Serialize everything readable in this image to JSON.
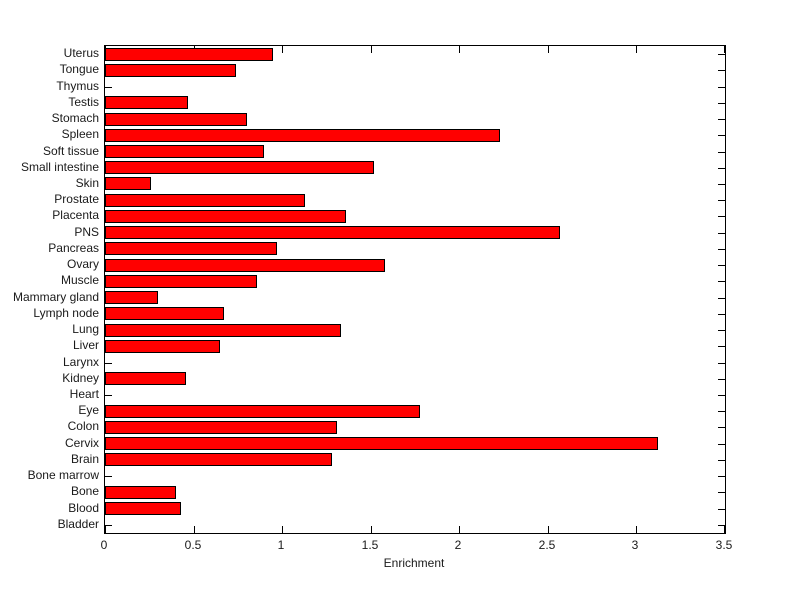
{
  "figure": {
    "background_color": "#ffffff",
    "axis_color": "#000000",
    "text_color": "#1a1a1a"
  },
  "chart_data": {
    "type": "bar",
    "orientation": "horizontal",
    "title": "",
    "xlabel": "Enrichment",
    "ylabel": "",
    "xlim": [
      0,
      3.5
    ],
    "x_ticks": [
      0,
      0.5,
      1,
      1.5,
      2,
      2.5,
      3,
      3.5
    ],
    "x_tick_labels": [
      "0",
      "0.5",
      "1",
      "1.5",
      "2",
      "2.5",
      "3",
      "3.5"
    ],
    "grid": false,
    "legend": null,
    "bar_color": "#ff0000",
    "bar_edge_color": "#000000",
    "categories_top_to_bottom": [
      "Uterus",
      "Tongue",
      "Thymus",
      "Testis",
      "Stomach",
      "Spleen",
      "Soft tissue",
      "Small intestine",
      "Skin",
      "Prostate",
      "Placenta",
      "PNS",
      "Pancreas",
      "Ovary",
      "Muscle",
      "Mammary gland",
      "Lymph node",
      "Lung",
      "Liver",
      "Larynx",
      "Kidney",
      "Heart",
      "Eye",
      "Colon",
      "Cervix",
      "Brain",
      "Bone marrow",
      "Bone",
      "Blood",
      "Bladder"
    ],
    "values": [
      0.95,
      0.74,
      0,
      0.47,
      0.8,
      2.23,
      0.9,
      1.52,
      0.26,
      1.13,
      1.36,
      2.57,
      0.97,
      1.58,
      0.86,
      0.3,
      0.67,
      1.33,
      0.65,
      0,
      0.46,
      0,
      1.78,
      1.31,
      3.12,
      1.28,
      0,
      0.4,
      0.43,
      0
    ]
  }
}
